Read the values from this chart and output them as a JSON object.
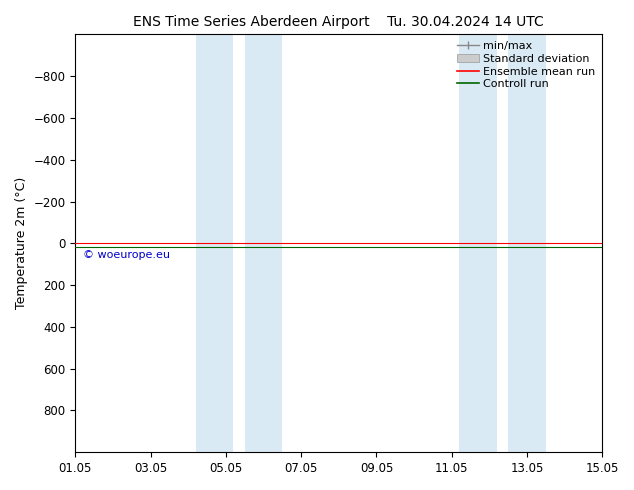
{
  "title_left": "ENS Time Series Aberdeen Airport",
  "title_right": "Tu. 30.04.2024 14 UTC",
  "ylabel": "Temperature 2m (°C)",
  "ylim_bottom": 1000,
  "ylim_top": -1000,
  "yticks": [
    -800,
    -600,
    -400,
    -200,
    0,
    200,
    400,
    600,
    800
  ],
  "xtick_labels": [
    "01.05",
    "03.05",
    "05.05",
    "07.05",
    "09.05",
    "11.05",
    "13.05",
    "15.05"
  ],
  "xmin": 0,
  "xmax": 14,
  "blue_bands": [
    [
      3.2,
      4.2
    ],
    [
      4.5,
      5.5
    ],
    [
      10.2,
      11.2
    ],
    [
      11.5,
      12.5
    ]
  ],
  "band_color": "#daeaf5",
  "mean_run_y": 0,
  "mean_run_color": "#ff0000",
  "control_run_y": 20,
  "control_run_color": "#006600",
  "watermark": "© woeurope.eu",
  "watermark_color": "#0000cc",
  "legend_items": [
    "min/max",
    "Standard deviation",
    "Ensemble mean run",
    "Controll run"
  ],
  "minmax_color": "#888888",
  "std_facecolor": "#cccccc",
  "std_edgecolor": "#999999",
  "ensemble_color": "#ff0000",
  "control_color": "#006600",
  "background_color": "#ffffff",
  "title_fontsize": 10,
  "axis_fontsize": 9,
  "tick_fontsize": 8.5,
  "legend_fontsize": 8
}
